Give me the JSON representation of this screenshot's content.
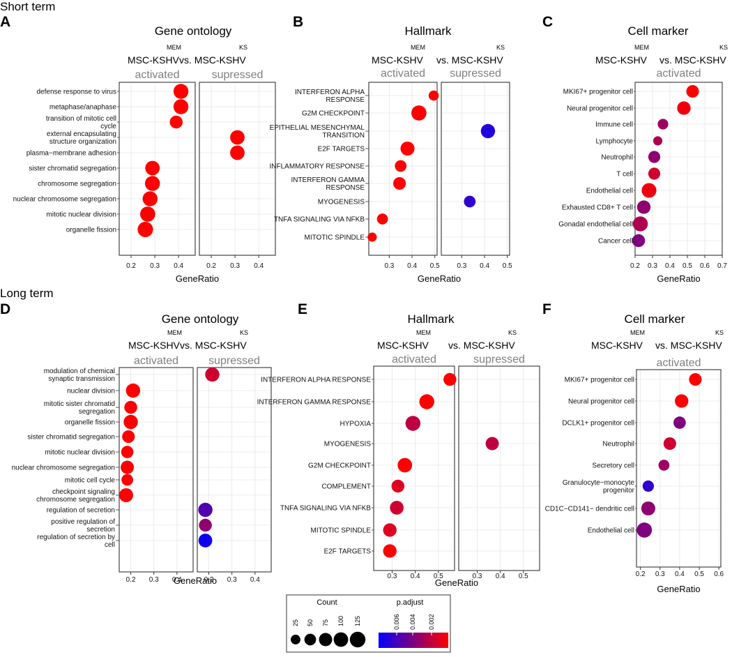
{
  "chart_data": {
    "type": "scatter",
    "section_titles": [
      "Short term",
      "Long term"
    ],
    "color_scale": {
      "low": "#0000ff",
      "high": "#ff0000"
    },
    "legend": {
      "count_title": "Count",
      "count_values": [
        25,
        50,
        75,
        100,
        125
      ],
      "count_labels": [
        "25",
        "50",
        "75",
        "100",
        "125"
      ],
      "padj_title": "p.adjust",
      "padj_labels": [
        "0.006",
        "0.004",
        "0.002"
      ]
    },
    "panels": [
      {
        "letter": "A",
        "title": "Gene ontology",
        "comparison": {
          "left": "MSC-KSHV",
          "left_sup": "MEM",
          "vs": "vs. MSC-KSHV",
          "right_sup": "KS"
        },
        "xlabel": "GeneRatio",
        "categories": [
          "defense response to virus",
          "metaphase/anaphase",
          "transition of mitotic cell cycle",
          "external encapsulating structure organization",
          "plasma−membrane adhesion",
          "sister chromatid segregation",
          "chromosome segregation",
          "nuclear chromosome segregation",
          "mitotic nuclear division",
          "organelle fission"
        ],
        "facets": [
          {
            "name": "activated",
            "xlim": [
              0.15,
              0.47
            ],
            "ticks": [
              0.2,
              0.3,
              0.4
            ],
            "tick_labels": [
              "0.2",
              "0.3",
              "0.4"
            ],
            "points": [
              {
                "cat": 0,
                "x": 0.41,
                "count": 110,
                "padj": 0.0
              },
              {
                "cat": 1,
                "x": 0.41,
                "count": 110,
                "padj": 0.0
              },
              {
                "cat": 2,
                "x": 0.39,
                "count": 70,
                "padj": 0.0
              },
              {
                "cat": 5,
                "x": 0.29,
                "count": 100,
                "padj": 0.0
              },
              {
                "cat": 6,
                "x": 0.29,
                "count": 110,
                "padj": 0.0
              },
              {
                "cat": 7,
                "x": 0.28,
                "count": 110,
                "padj": 0.0
              },
              {
                "cat": 8,
                "x": 0.27,
                "count": 115,
                "padj": 0.0
              },
              {
                "cat": 9,
                "x": 0.26,
                "count": 120,
                "padj": 0.0
              }
            ]
          },
          {
            "name": "supressed",
            "xlim": [
              0.15,
              0.47
            ],
            "ticks": [
              0.2,
              0.3,
              0.4
            ],
            "tick_labels": [
              "0.2",
              "0.3",
              "0.4"
            ],
            "points": [
              {
                "cat": 3,
                "x": 0.31,
                "count": 100,
                "padj": 0.0
              },
              {
                "cat": 4,
                "x": 0.31,
                "count": 100,
                "padj": 0.0
              }
            ]
          }
        ]
      },
      {
        "letter": "B",
        "title": "Hallmark",
        "comparison": {
          "left": "MSC-KSHV",
          "left_sup": "MEM",
          "vs": "vs. MSC-KSHV",
          "right_sup": "KS"
        },
        "xlabel": "GeneRatio",
        "categories": [
          "INTERFERON ALPHA RESPONSE",
          "G2M CHECKPOINT",
          "EPITHELIAL MESENCHYMAL TRANSITION",
          "E2F TARGETS",
          "INFLAMMATORY RESPONSE",
          "INTERFERON GAMMA RESPONSE",
          "MYOGENESIS",
          "TNFA SIGNALING VIA NFKB",
          "MITOTIC SPINDLE"
        ],
        "facets": [
          {
            "name": "activated",
            "xlim": [
              0.21,
              0.51
            ],
            "ticks": [
              0.3,
              0.4,
              0.5
            ],
            "tick_labels": [
              "0.3",
              "0.4",
              "0.5"
            ],
            "points": [
              {
                "cat": 0,
                "x": 0.495,
                "count": 30,
                "padj": 0.0
              },
              {
                "cat": 1,
                "x": 0.43,
                "count": 115,
                "padj": 0.0
              },
              {
                "cat": 3,
                "x": 0.38,
                "count": 90,
                "padj": 0.0
              },
              {
                "cat": 4,
                "x": 0.35,
                "count": 50,
                "padj": 0.0
              },
              {
                "cat": 5,
                "x": 0.345,
                "count": 65,
                "padj": 0.0
              },
              {
                "cat": 7,
                "x": 0.27,
                "count": 40,
                "padj": 0.0
              },
              {
                "cat": 8,
                "x": 0.225,
                "count": 20,
                "padj": 0.0
              }
            ]
          },
          {
            "name": "supressed",
            "xlim": [
              0.21,
              0.51
            ],
            "ticks": [
              0.3,
              0.4,
              0.5
            ],
            "tick_labels": [
              "0.3",
              "0.4",
              "0.5"
            ],
            "points": [
              {
                "cat": 2,
                "x": 0.415,
                "count": 95,
                "padj": 0.007
              },
              {
                "cat": 6,
                "x": 0.335,
                "count": 50,
                "padj": 0.0065
              }
            ]
          }
        ]
      },
      {
        "letter": "C",
        "title": "Cell marker",
        "comparison": {
          "left": "MSC-KSHV",
          "left_sup": "MEM",
          "vs": "vs. MSC-KSHV",
          "right_sup": "KS"
        },
        "xlabel": "GeneRatio",
        "categories": [
          "MKI67+ progenitor cell",
          "Neural progenitor cell",
          "Immune cell",
          "Lymphocyte",
          "Neutrophil",
          "T cell",
          "Endothelial cell",
          "Exhausted CD8+ T cell",
          "Gonadal endothelial cell",
          "Cancer cell"
        ],
        "facets": [
          {
            "name": "activated",
            "xlim": [
              0.2,
              0.7
            ],
            "ticks": [
              0.2,
              0.3,
              0.4,
              0.5,
              0.6,
              0.7
            ],
            "tick_labels": [
              "0.2",
              "0.3",
              "0.4",
              "0.5",
              "0.6",
              "0.7"
            ],
            "points": [
              {
                "cat": 0,
                "x": 0.53,
                "count": 65,
                "padj": 0.0
              },
              {
                "cat": 1,
                "x": 0.48,
                "count": 80,
                "padj": 0.0005
              },
              {
                "cat": 2,
                "x": 0.36,
                "count": 35,
                "padj": 0.003
              },
              {
                "cat": 3,
                "x": 0.33,
                "count": 20,
                "padj": 0.0025
              },
              {
                "cat": 4,
                "x": 0.31,
                "count": 55,
                "padj": 0.0035
              },
              {
                "cat": 5,
                "x": 0.31,
                "count": 55,
                "padj": 0.0015
              },
              {
                "cat": 6,
                "x": 0.28,
                "count": 105,
                "padj": 0.0005
              },
              {
                "cat": 7,
                "x": 0.25,
                "count": 80,
                "padj": 0.0035
              },
              {
                "cat": 8,
                "x": 0.23,
                "count": 110,
                "padj": 0.0025
              },
              {
                "cat": 9,
                "x": 0.22,
                "count": 70,
                "padj": 0.004
              }
            ]
          }
        ]
      },
      {
        "letter": "D",
        "title": "Gene ontology",
        "comparison": {
          "left": "MSC-KSHV",
          "left_sup": "MEM",
          "vs": "vs. MSC-KSHV",
          "right_sup": "KS"
        },
        "xlabel": "GeneRatio",
        "categories": [
          "modulation of chemical synaptic transmission",
          "nuclear division",
          "mitotic sister chromatid segregation",
          "organelle fission",
          "sister chromatid segregation",
          "mitotic nuclear division",
          "nuclear chromosome segregation",
          "mitotic cell cycle",
          "checkpoint signaling chromosome segregation",
          "regulation of secretion",
          "positive regulation of secretion",
          "regulation of secretion by cell"
        ],
        "facets": [
          {
            "name": "activated",
            "xlim": [
              0.15,
              0.47
            ],
            "ticks": [
              0.2,
              0.3,
              0.4
            ],
            "tick_labels": [
              "0.2",
              "0.3",
              "0.4"
            ],
            "points": [
              {
                "cat": 1,
                "x": 0.21,
                "count": 95,
                "padj": 0.0
              },
              {
                "cat": 2,
                "x": 0.2,
                "count": 70,
                "padj": 0.0
              },
              {
                "cat": 3,
                "x": 0.2,
                "count": 95,
                "padj": 0.0
              },
              {
                "cat": 4,
                "x": 0.19,
                "count": 65,
                "padj": 0.0
              },
              {
                "cat": 5,
                "x": 0.185,
                "count": 60,
                "padj": 0.0
              },
              {
                "cat": 6,
                "x": 0.185,
                "count": 75,
                "padj": 0.0
              },
              {
                "cat": 7,
                "x": 0.185,
                "count": 50,
                "padj": 0.0
              },
              {
                "cat": 8,
                "x": 0.18,
                "count": 90,
                "padj": 0.0
              }
            ]
          },
          {
            "name": "supressed",
            "xlim": [
              0.15,
              0.47
            ],
            "ticks": [
              0.2,
              0.3,
              0.4
            ],
            "tick_labels": [
              "0.2",
              "0.3",
              "0.4"
            ],
            "points": [
              {
                "cat": 0,
                "x": 0.215,
                "count": 95,
                "padj": 0.0015
              },
              {
                "cat": 9,
                "x": 0.185,
                "count": 95,
                "padj": 0.0055
              },
              {
                "cat": 10,
                "x": 0.185,
                "count": 70,
                "padj": 0.0035
              },
              {
                "cat": 11,
                "x": 0.185,
                "count": 85,
                "padj": 0.0075
              }
            ]
          }
        ]
      },
      {
        "letter": "E",
        "title": "Hallmark",
        "comparison": {
          "left": "MSC-KSHV",
          "left_sup": "MEM",
          "vs": "vs. MSC-KSHV",
          "right_sup": "KS"
        },
        "xlabel": "GeneRatio",
        "categories": [
          "INTERFERON ALPHA RESPONSE",
          "INTERFERON GAMMA RESPONSE",
          "HYPOXIA",
          "MYOGENESIS",
          "G2M CHECKPOINT",
          "COMPLEMENT",
          "TNFA SIGNALING VIA NFKB",
          "MITOTIC SPINDLE",
          "E2F TARGETS"
        ],
        "facets": [
          {
            "name": "activated",
            "xlim": [
              0.22,
              0.57
            ],
            "ticks": [
              0.3,
              0.4,
              0.5
            ],
            "tick_labels": [
              "0.3",
              "0.4",
              "0.5"
            ],
            "points": [
              {
                "cat": 0,
                "x": 0.55,
                "count": 70,
                "padj": 0.0
              },
              {
                "cat": 1,
                "x": 0.45,
                "count": 110,
                "padj": 0.0
              },
              {
                "cat": 2,
                "x": 0.39,
                "count": 110,
                "padj": 0.002
              },
              {
                "cat": 4,
                "x": 0.355,
                "count": 100,
                "padj": 0.0
              },
              {
                "cat": 5,
                "x": 0.325,
                "count": 70,
                "padj": 0.001
              },
              {
                "cat": 6,
                "x": 0.32,
                "count": 85,
                "padj": 0.0015
              },
              {
                "cat": 7,
                "x": 0.29,
                "count": 80,
                "padj": 0.001
              },
              {
                "cat": 8,
                "x": 0.29,
                "count": 80,
                "padj": 0.0
              }
            ]
          },
          {
            "name": "supressed",
            "xlim": [
              0.22,
              0.57
            ],
            "ticks": [
              0.3,
              0.4,
              0.5
            ],
            "tick_labels": [
              "0.3",
              "0.4",
              "0.5"
            ],
            "points": [
              {
                "cat": 3,
                "x": 0.365,
                "count": 75,
                "padj": 0.002
              }
            ]
          }
        ]
      },
      {
        "letter": "F",
        "title": "Cell marker",
        "comparison": {
          "left": "MSC-KSHV",
          "left_sup": "MEM",
          "vs": "vs. MSC-KSHV",
          "right_sup": "KS"
        },
        "xlabel": "GeneRatio",
        "categories": [
          "MKI67+ progenitor cell",
          "Neural progenitor cell",
          "DCLK1+ progenitor cell",
          "Neutrophil",
          "Secretory cell",
          "Granulocyte−monocyte progenitor",
          "CD1C−CD141− dendritic cell",
          "Endothelial cell"
        ],
        "facets": [
          {
            "name": "activated",
            "xlim": [
              0.18,
              0.61
            ],
            "ticks": [
              0.2,
              0.3,
              0.4,
              0.5,
              0.6
            ],
            "tick_labels": [
              "0.2",
              "0.3",
              "0.4",
              "0.5",
              "0.6"
            ],
            "points": [
              {
                "cat": 0,
                "x": 0.48,
                "count": 65,
                "padj": 0.0
              },
              {
                "cat": 1,
                "x": 0.41,
                "count": 80,
                "padj": 0.0
              },
              {
                "cat": 2,
                "x": 0.4,
                "count": 60,
                "padj": 0.004
              },
              {
                "cat": 3,
                "x": 0.35,
                "count": 65,
                "padj": 0.0015
              },
              {
                "cat": 4,
                "x": 0.32,
                "count": 40,
                "padj": 0.003
              },
              {
                "cat": 5,
                "x": 0.24,
                "count": 45,
                "padj": 0.0065
              },
              {
                "cat": 6,
                "x": 0.24,
                "count": 90,
                "padj": 0.0035
              },
              {
                "cat": 7,
                "x": 0.22,
                "count": 115,
                "padj": 0.004
              }
            ]
          }
        ]
      }
    ]
  }
}
